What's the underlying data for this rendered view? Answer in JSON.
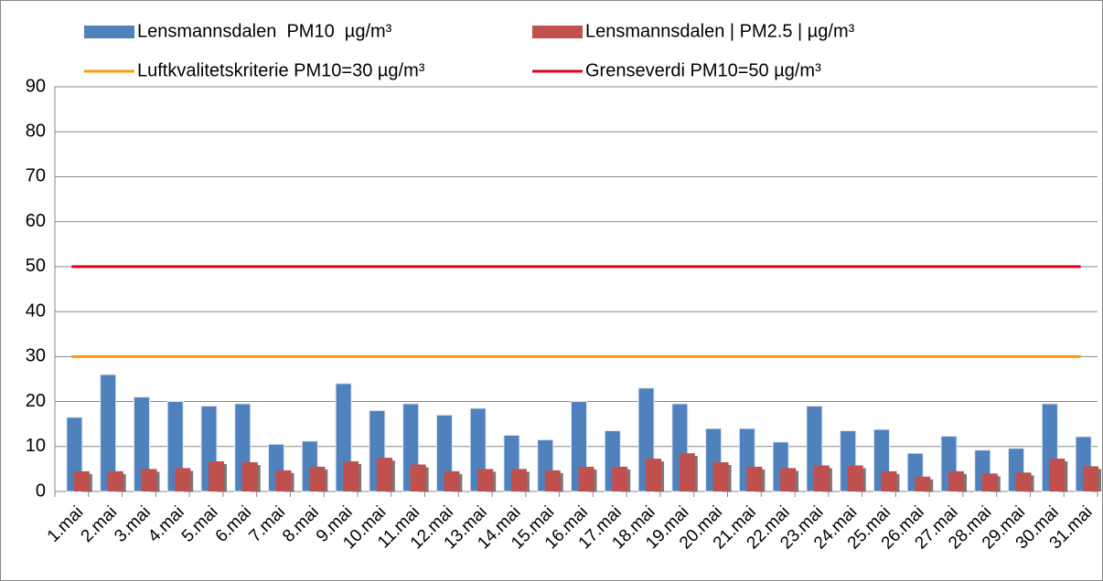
{
  "chart_data": {
    "type": "bar",
    "categories": [
      "1.mai",
      "2.mai",
      "3.mai",
      "4.mai",
      "5.mai",
      "6.mai",
      "7.mai",
      "8.mai",
      "9.mai",
      "10.mai",
      "11.mai",
      "12.mai",
      "13.mai",
      "14.mai",
      "15.mai",
      "16.mai",
      "17.mai",
      "18.mai",
      "19.mai",
      "20.mai",
      "21.mai",
      "22.mai",
      "23.mai",
      "24.mai",
      "25.mai",
      "26.mai",
      "27.mai",
      "28.mai",
      "29.mai",
      "30.mai",
      "31.mai"
    ],
    "series": [
      {
        "name": "Lensmannsdalen  PM10  µg/m³",
        "type": "bar",
        "color": "#4f81bd",
        "values": [
          16.5,
          26,
          21,
          20,
          19,
          19.5,
          10.5,
          11.2,
          24,
          18,
          19.5,
          17,
          18.5,
          12.5,
          11.5,
          20,
          13.5,
          23,
          19.5,
          14,
          14,
          11,
          19,
          13.5,
          13.8,
          8.5,
          12.3,
          9.2,
          9.6,
          19.5,
          12.2
        ]
      },
      {
        "name": "Lensmannsdalen | PM2.5 | µg/m³",
        "type": "bar",
        "color": "#c0504d",
        "values": [
          4.5,
          4.5,
          5,
          5.2,
          6.7,
          6.5,
          4.7,
          5.5,
          6.7,
          7.5,
          6,
          4.5,
          5,
          5,
          4.7,
          5.5,
          5.5,
          7.3,
          8.5,
          6.5,
          5.5,
          5.2,
          5.8,
          5.8,
          4.5,
          3.3,
          4.5,
          4,
          4.2,
          7.3,
          5.6
        ]
      },
      {
        "name": "Luftkvalitetskriterie PM10=30 µg/m³",
        "type": "line",
        "color": "#f79c0f",
        "values": [
          30,
          30,
          30,
          30,
          30,
          30,
          30,
          30,
          30,
          30,
          30,
          30,
          30,
          30,
          30,
          30,
          30,
          30,
          30,
          30,
          30,
          30,
          30,
          30,
          30,
          30,
          30,
          30,
          30,
          30,
          30
        ]
      },
      {
        "name": "Grenseverdi PM10=50 µg/m³",
        "type": "line",
        "color": "#e3001b",
        "values": [
          50,
          50,
          50,
          50,
          50,
          50,
          50,
          50,
          50,
          50,
          50,
          50,
          50,
          50,
          50,
          50,
          50,
          50,
          50,
          50,
          50,
          50,
          50,
          50,
          50,
          50,
          50,
          50,
          50,
          50,
          50
        ]
      }
    ],
    "ylim": [
      0,
      90
    ],
    "yticks": [
      0,
      10,
      20,
      30,
      40,
      50,
      60,
      70,
      80,
      90
    ],
    "grid": true
  }
}
